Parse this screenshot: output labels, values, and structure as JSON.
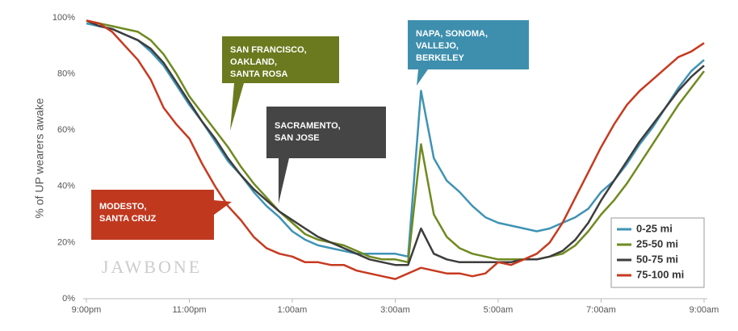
{
  "chart_data": {
    "type": "line",
    "ylabel": "% of UP wearers awake",
    "watermark": "JAWBONE",
    "x": [
      0,
      0.25,
      0.5,
      0.75,
      1,
      1.25,
      1.5,
      1.75,
      2,
      2.25,
      2.5,
      2.75,
      3,
      3.25,
      3.5,
      3.75,
      4,
      4.25,
      4.5,
      4.75,
      5,
      5.25,
      5.5,
      5.75,
      6,
      6.25,
      6.5,
      6.75,
      7,
      7.25,
      7.5,
      7.75,
      8,
      8.25,
      8.5,
      8.75,
      9,
      9.25,
      9.5,
      9.75,
      10,
      10.25,
      10.5,
      10.75,
      11,
      11.25,
      11.5,
      11.75,
      12
    ],
    "xlim": [
      0,
      12
    ],
    "xticks": [
      {
        "value": 0,
        "label": "9:00pm"
      },
      {
        "value": 2,
        "label": "11:00pm"
      },
      {
        "value": 4,
        "label": "1:00am"
      },
      {
        "value": 6,
        "label": "3:00am"
      },
      {
        "value": 8,
        "label": "5:00am"
      },
      {
        "value": 10,
        "label": "7:00am"
      },
      {
        "value": 12,
        "label": "9:00am"
      }
    ],
    "ylim": [
      0,
      100
    ],
    "yticks": [
      {
        "value": 0,
        "label": "0%"
      },
      {
        "value": 20,
        "label": "20%"
      },
      {
        "value": 40,
        "label": "40%"
      },
      {
        "value": 60,
        "label": "60%"
      },
      {
        "value": 80,
        "label": "80%"
      },
      {
        "value": 100,
        "label": "100%"
      }
    ],
    "legend": "lower right",
    "series": [
      {
        "name": "0-25 mi",
        "color": "#3f93b5",
        "values": [
          98,
          97,
          96,
          94,
          92,
          88,
          83,
          76,
          69,
          63,
          56,
          49,
          44,
          38,
          33,
          29,
          24,
          21,
          19,
          18,
          17,
          16,
          16,
          16,
          16,
          15,
          74,
          50,
          42,
          38,
          33,
          29,
          27,
          26,
          25,
          24,
          25,
          27,
          29,
          32,
          38,
          42,
          48,
          55,
          61,
          68,
          75,
          81,
          85
        ]
      },
      {
        "name": "25-50 mi",
        "color": "#6f8a1f",
        "values": [
          99,
          98,
          97,
          96,
          95,
          92,
          87,
          80,
          72,
          66,
          60,
          54,
          47,
          41,
          36,
          31,
          27,
          23,
          21,
          20,
          19,
          17,
          15,
          14,
          14,
          13,
          55,
          30,
          22,
          18,
          16,
          15,
          14,
          14,
          14,
          14,
          15,
          16,
          19,
          24,
          30,
          35,
          41,
          48,
          55,
          62,
          69,
          75,
          81
        ]
      },
      {
        "name": "50-75 mi",
        "color": "#3d3d3d",
        "values": [
          99,
          97,
          96,
          94,
          92,
          89,
          84,
          77,
          70,
          63,
          57,
          50,
          44,
          39,
          35,
          31,
          28,
          25,
          22,
          20,
          18,
          16,
          14,
          13,
          12,
          12,
          25,
          16,
          14,
          13,
          13,
          13,
          13,
          13,
          14,
          14,
          15,
          17,
          21,
          27,
          35,
          42,
          49,
          56,
          62,
          68,
          74,
          79,
          83
        ]
      },
      {
        "name": "75-100 mi",
        "color": "#c73a20",
        "values": [
          99,
          98,
          95,
          90,
          85,
          78,
          68,
          62,
          57,
          48,
          40,
          33,
          28,
          22,
          18,
          16,
          15,
          13,
          13,
          12,
          12,
          10,
          9,
          8,
          7,
          9,
          11,
          10,
          9,
          9,
          8,
          9,
          13,
          12,
          14,
          16,
          20,
          27,
          36,
          45,
          54,
          62,
          69,
          74,
          78,
          82,
          86,
          88,
          91
        ]
      }
    ],
    "annotations": [
      {
        "lines": [
          "SAN FRANCISCO,",
          "OAKLAND,",
          "SANTA ROSA"
        ],
        "color": "#6b7a1e"
      },
      {
        "lines": [
          "SACRAMENTO,",
          "SAN JOSE"
        ],
        "color": "#454545"
      },
      {
        "lines": [
          "MODESTO,",
          "SANTA CRUZ"
        ],
        "color": "#c0391f"
      },
      {
        "lines": [
          "NAPA, SONOMA,",
          "VALLEJO,",
          "BERKELEY"
        ],
        "color": "#3e8fae"
      }
    ]
  }
}
